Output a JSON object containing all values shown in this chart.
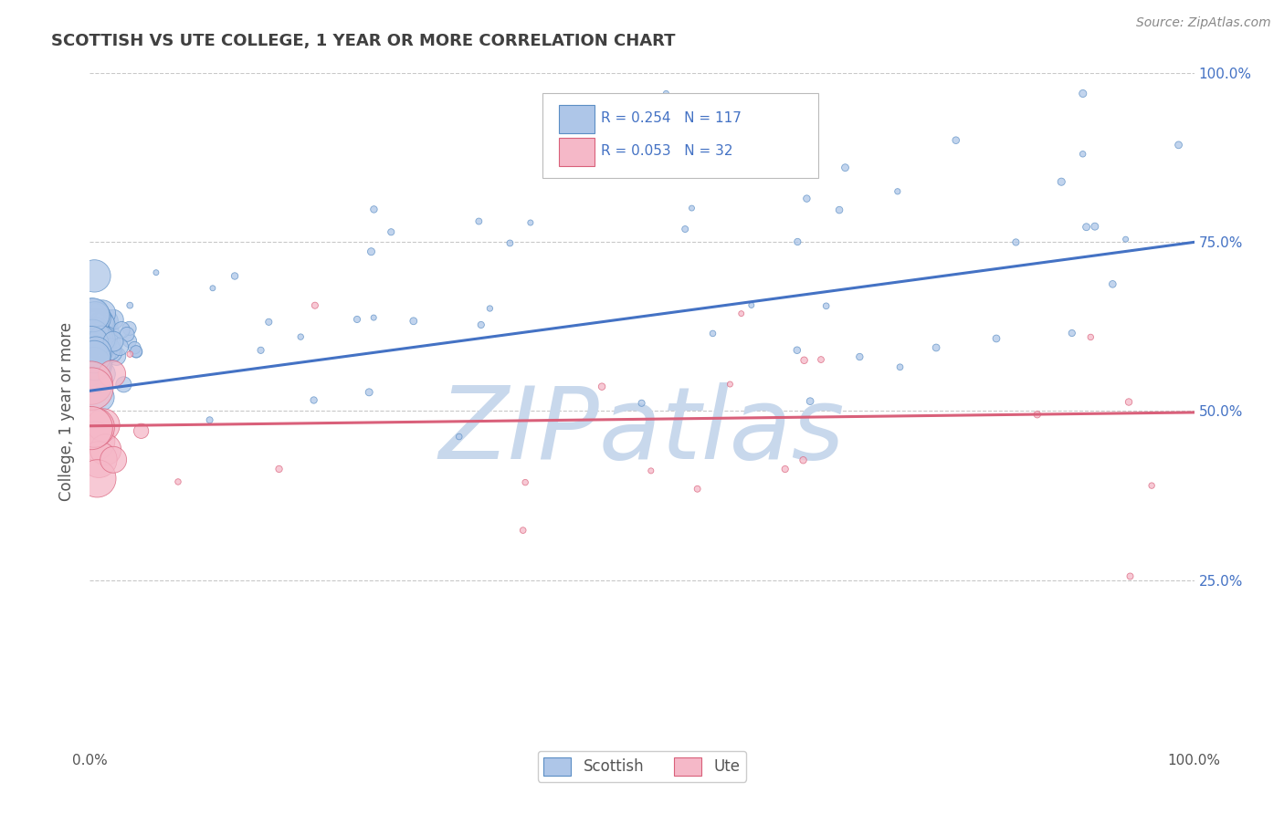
{
  "title": "SCOTTISH VS UTE COLLEGE, 1 YEAR OR MORE CORRELATION CHART",
  "source_text": "Source: ZipAtlas.com",
  "ylabel": "College, 1 year or more",
  "xlim": [
    0.0,
    1.0
  ],
  "ylim": [
    0.0,
    1.0
  ],
  "ytick_positions": [
    0.25,
    0.5,
    0.75,
    1.0
  ],
  "scottish_R": 0.254,
  "scottish_N": 117,
  "ute_R": 0.053,
  "ute_N": 32,
  "scottish_fill": "#aec6e8",
  "ute_fill": "#f5b8c8",
  "scottish_edge": "#5b8ec4",
  "ute_edge": "#d9607a",
  "scottish_line_color": "#4472c4",
  "ute_line_color": "#d9607a",
  "title_color": "#404040",
  "watermark_color": "#c8d8ec",
  "background_color": "#ffffff",
  "grid_color": "#bbbbbb",
  "label_color": "#4472c4",
  "tick_label_color": "#555555",
  "scottish_line_start": 0.53,
  "scottish_line_end": 0.75,
  "ute_line_start": 0.478,
  "ute_line_end": 0.498
}
